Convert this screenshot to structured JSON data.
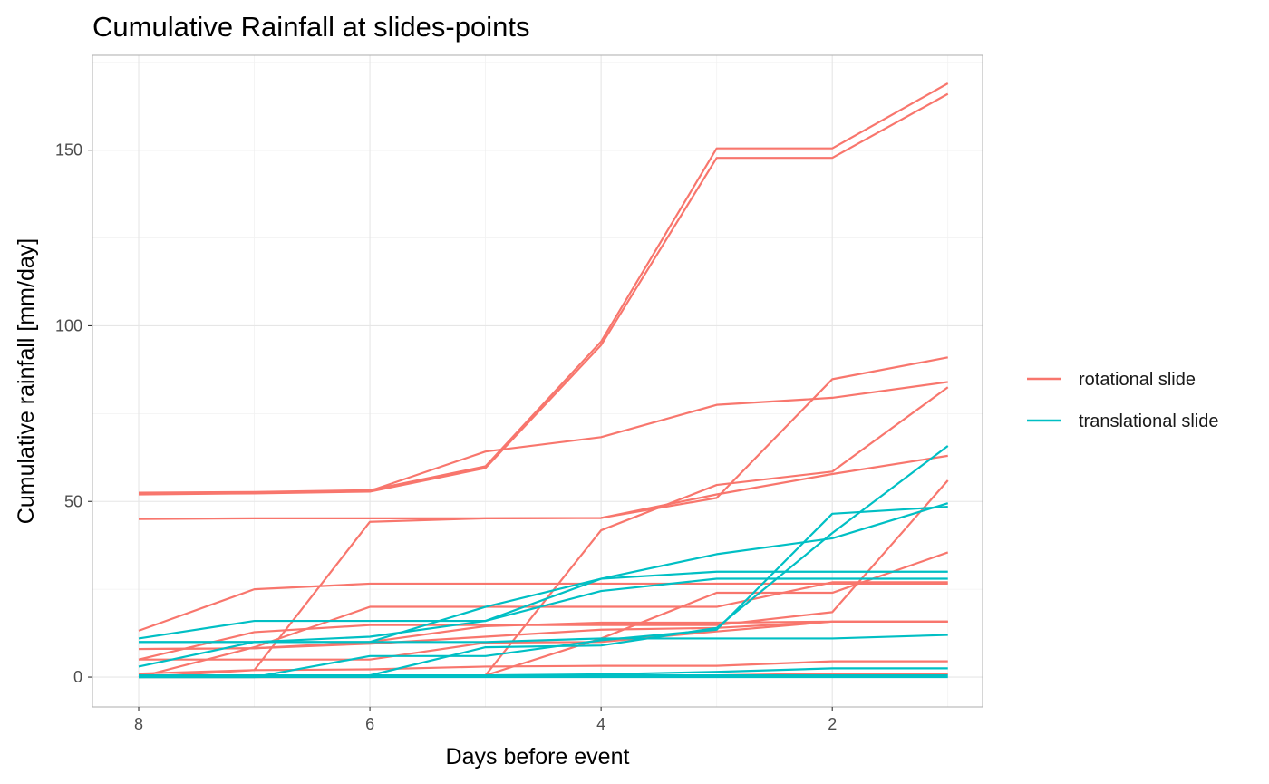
{
  "chart_data": {
    "type": "line",
    "title": "Cumulative Rainfall at slides-points",
    "xlabel": "Days before event",
    "ylabel": "Cumulative rainfall [mm/day]",
    "x_reversed": true,
    "xlim": [
      8.4,
      0.7
    ],
    "ylim": [
      -8.5,
      177
    ],
    "x_ticks": [
      8,
      6,
      4,
      2
    ],
    "y_ticks": [
      0,
      50,
      100,
      150
    ],
    "grid": true,
    "legend_position": "right",
    "x": [
      8,
      7,
      6,
      5,
      4,
      3,
      2,
      1
    ],
    "legend": [
      {
        "key": "rotational",
        "label": "rotational slide",
        "color": "#F8766D"
      },
      {
        "key": "translational",
        "label": "translational slide",
        "color": "#00BFC4"
      }
    ],
    "series": [
      {
        "group": "rotational",
        "values": [
          52.5,
          52.7,
          53.2,
          60.0,
          95.5,
          150.5,
          150.5,
          169.0
        ]
      },
      {
        "group": "rotational",
        "values": [
          52.0,
          52.3,
          52.8,
          59.5,
          94.5,
          147.8,
          147.8,
          166.0
        ]
      },
      {
        "group": "rotational",
        "values": [
          52.3,
          52.5,
          53.0,
          64.2,
          68.3,
          77.5,
          79.5,
          84.0
        ]
      },
      {
        "group": "rotational",
        "values": [
          0.0,
          2.0,
          44.2,
          45.2,
          45.3,
          52.0,
          57.8,
          63.0
        ]
      },
      {
        "group": "rotational",
        "values": [
          45.0,
          45.2,
          45.2,
          45.2,
          45.3,
          51.0,
          84.8,
          91.0
        ]
      },
      {
        "group": "rotational",
        "values": [
          0.5,
          0.5,
          0.5,
          0.5,
          41.8,
          54.7,
          58.5,
          82.5
        ]
      },
      {
        "group": "rotational",
        "values": [
          13.2,
          25.0,
          26.6,
          26.6,
          26.6,
          26.6,
          26.6,
          26.6
        ]
      },
      {
        "group": "rotational",
        "values": [
          0.0,
          0.0,
          0.0,
          0.5,
          11.0,
          24.0,
          24.0,
          35.5
        ]
      },
      {
        "group": "rotational",
        "values": [
          5.0,
          12.8,
          14.8,
          14.8,
          14.8,
          14.8,
          18.5,
          56.0
        ]
      },
      {
        "group": "rotational",
        "values": [
          0.0,
          8.5,
          20.0,
          20.0,
          20.0,
          20.0,
          27.0,
          27.0
        ]
      },
      {
        "group": "rotational",
        "values": [
          8.0,
          8.2,
          10.0,
          14.5,
          15.5,
          15.5,
          15.8,
          15.8
        ]
      },
      {
        "group": "rotational",
        "values": [
          8.0,
          8.2,
          9.5,
          11.5,
          13.5,
          14.0,
          15.8,
          15.8
        ]
      },
      {
        "group": "rotational",
        "values": [
          5.0,
          5.0,
          5.0,
          9.8,
          10.0,
          13.0,
          15.8,
          15.8
        ]
      },
      {
        "group": "rotational",
        "values": [
          1.0,
          2.0,
          2.2,
          3.0,
          3.2,
          3.2,
          4.5,
          4.5
        ]
      },
      {
        "group": "rotational",
        "values": [
          0.0,
          0.0,
          0.0,
          0.2,
          0.5,
          0.5,
          1.0,
          1.0
        ]
      },
      {
        "group": "translational",
        "values": [
          3.0,
          10.0,
          10.0,
          20.0,
          28.0,
          35.0,
          39.5,
          49.5
        ]
      },
      {
        "group": "translational",
        "values": [
          11.0,
          16.0,
          16.0,
          16.0,
          28.0,
          30.0,
          30.0,
          30.0
        ]
      },
      {
        "group": "translational",
        "values": [
          10.0,
          10.0,
          11.5,
          16.0,
          24.5,
          28.0,
          28.0,
          28.0
        ]
      },
      {
        "group": "translational",
        "values": [
          0.0,
          0.0,
          6.0,
          6.0,
          10.5,
          13.5,
          46.5,
          48.5
        ]
      },
      {
        "group": "translational",
        "values": [
          0.0,
          0.0,
          0.5,
          8.5,
          9.0,
          14.0,
          41.0,
          65.8
        ]
      },
      {
        "group": "translational",
        "values": [
          10.0,
          10.0,
          10.0,
          10.0,
          11.0,
          11.0,
          11.0,
          12.0
        ]
      },
      {
        "group": "translational",
        "values": [
          0.0,
          0.5,
          0.5,
          0.5,
          0.8,
          1.5,
          2.5,
          2.5
        ]
      },
      {
        "group": "translational",
        "values": [
          0.5,
          0.5,
          0.5,
          0.5,
          0.5,
          0.5,
          0.5,
          0.5
        ]
      },
      {
        "group": "translational",
        "values": [
          0.0,
          0.0,
          0.0,
          0.0,
          0.0,
          0.0,
          0.0,
          0.0
        ]
      }
    ]
  }
}
